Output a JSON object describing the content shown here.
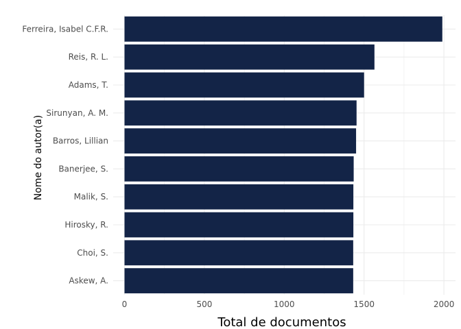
{
  "chart_data": {
    "type": "bar",
    "orientation": "horizontal",
    "categories": [
      "Ferreira, Isabel C.F.R.",
      "Reis, R. L.",
      "Adams, T.",
      "Sirunyan, A. M.",
      "Barros, Lillian",
      "Banerjee, S.",
      "Malik, S.",
      "Hirosky, R.",
      "Choi, S.",
      "Askew, A."
    ],
    "values": [
      1990,
      1565,
      1500,
      1453,
      1450,
      1435,
      1433,
      1433,
      1432,
      1432
    ],
    "xlabel": "Total de documentos",
    "ylabel": "Nome do autor(a)",
    "xlim": [
      0,
      2050
    ],
    "xticks": [
      0,
      500,
      1000,
      1500,
      2000
    ],
    "xtick_labels": [
      "0",
      "500",
      "1000",
      "1500",
      "2000"
    ],
    "bar_color": "#132447",
    "grid": true,
    "grid_color": "#ebebeb"
  }
}
